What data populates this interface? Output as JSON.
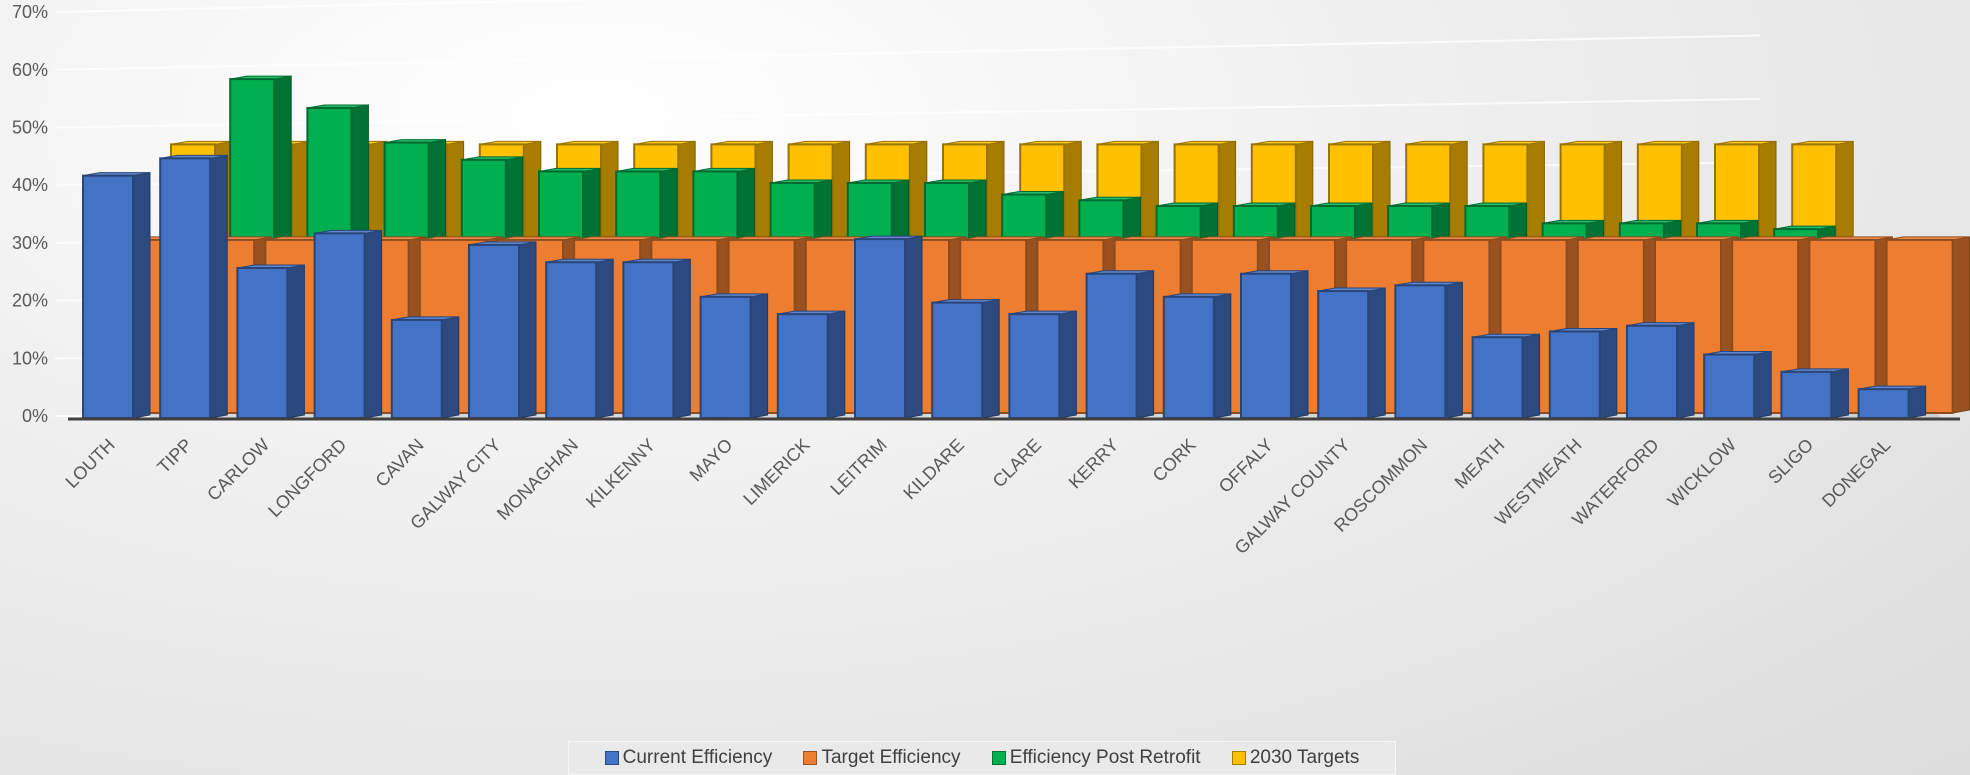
{
  "chart_data": {
    "type": "bar",
    "subtype": "3d-clustered-column",
    "title": "",
    "xlabel": "",
    "ylabel": "",
    "ylim": [
      0,
      70
    ],
    "yticks": [
      "0%",
      "10%",
      "20%",
      "30%",
      "40%",
      "50%",
      "60%",
      "70%"
    ],
    "grid": true,
    "legend_position": "bottom",
    "categories": [
      "LOUTH",
      "TIPP",
      "CARLOW",
      "LONGFORD",
      "CAVAN",
      "GALWAY CITY",
      "MONAGHAN",
      "KILKENNY",
      "MAYO",
      "LIMERICK",
      "LEITRIM",
      "KILDARE",
      "CLARE",
      "KERRY",
      "CORK",
      "OFFALY",
      "GALWAY COUNTY",
      "ROSCOMMON",
      "MEATH",
      "WESTMEATH",
      "WATERFORD",
      "WICKLOW",
      "SLIGO",
      "DONEGAL"
    ],
    "series": [
      {
        "name": "Current Efficiency",
        "color": "#4472C4",
        "values": [
          42,
          45,
          26,
          32,
          17,
          30,
          27,
          27,
          21,
          18,
          31,
          20,
          18,
          25,
          21,
          25,
          22,
          23,
          14,
          15,
          16,
          11,
          8,
          5
        ]
      },
      {
        "name": "Target Efficiency",
        "color": "#ED7D31",
        "values": [
          30,
          30,
          30,
          30,
          30,
          30,
          30,
          30,
          30,
          30,
          30,
          30,
          30,
          30,
          30,
          30,
          30,
          30,
          30,
          30,
          30,
          30,
          30,
          30
        ]
      },
      {
        "name": "Efficiency Post Retrofit",
        "color": "#00B050",
        "values": [
          null,
          57,
          52,
          46,
          43,
          41,
          41,
          41,
          39,
          39,
          39,
          37,
          36,
          35,
          35,
          35,
          35,
          35,
          32,
          32,
          32,
          31,
          19,
          null
        ]
      },
      {
        "name": "2030 Targets",
        "color": "#FFC000",
        "values": [
          45,
          45,
          45,
          45,
          45,
          45,
          45,
          45,
          45,
          45,
          45,
          45,
          45,
          45,
          45,
          45,
          45,
          45,
          45,
          45,
          45,
          45,
          null,
          null
        ]
      }
    ]
  }
}
